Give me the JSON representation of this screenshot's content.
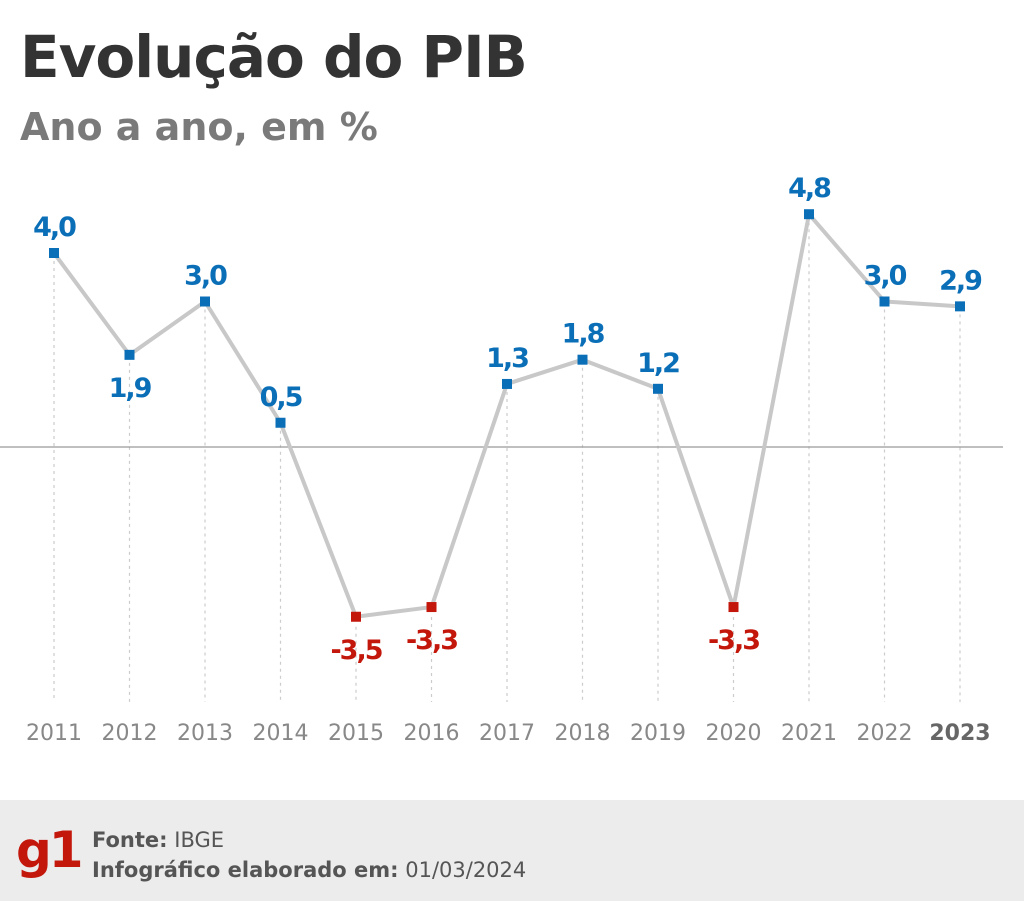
{
  "header": {
    "title": "Evolução do PIB",
    "subtitle": "Ano a ano, em %"
  },
  "chart_data": {
    "type": "line",
    "title": "Evolução do PIB",
    "subtitle": "Ano a ano, em %",
    "xlabel": "",
    "ylabel": "",
    "x": [
      "2011",
      "2012",
      "2013",
      "2014",
      "2015",
      "2016",
      "2017",
      "2018",
      "2019",
      "2020",
      "2021",
      "2022",
      "2023"
    ],
    "values": [
      4.0,
      1.9,
      3.0,
      0.5,
      -3.5,
      -3.3,
      1.3,
      1.8,
      1.2,
      -3.3,
      4.8,
      3.0,
      2.9
    ],
    "data_labels": [
      "4,0",
      "1,9",
      "3,0",
      "0,5",
      "-3,5",
      "-3,3",
      "1,3",
      "1,8",
      "1,2",
      "-3,3",
      "4,8",
      "3,0",
      "2,9"
    ],
    "highlight_x": "2023",
    "grid": false,
    "legend": "none",
    "colors": {
      "positive": "#0b6fb8",
      "negative": "#c4170c",
      "line": "#c8c8c8",
      "zero_line": "#999999",
      "guide": "#cccccc",
      "tick_label": "#888888",
      "tick_label_highlight": "#666666"
    }
  },
  "footer": {
    "logo": "g1",
    "source_label": "Fonte:",
    "source_value": "IBGE",
    "date_label": "Infográfico elaborado em:",
    "date_value": "01/03/2024"
  }
}
